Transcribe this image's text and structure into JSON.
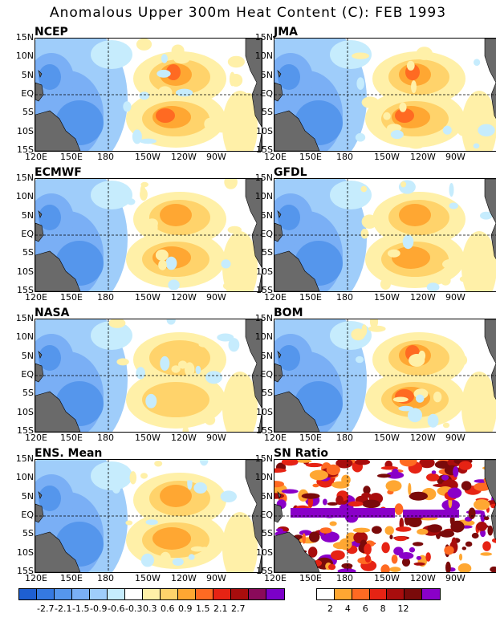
{
  "title": "Anomalous Upper 300m Heat Content (C): FEB 1993",
  "lat_labels": [
    "15N",
    "10N",
    "5N",
    "EQ",
    "5S",
    "10S",
    "15S"
  ],
  "lon_labels": [
    "120E",
    "150E",
    "180",
    "150W",
    "120W",
    "90W"
  ],
  "panels": [
    {
      "id": "ncep",
      "label": "NCEP"
    },
    {
      "id": "jma",
      "label": "JMA"
    },
    {
      "id": "ecmwf",
      "label": "ECMWF"
    },
    {
      "id": "gfdl",
      "label": "GFDL"
    },
    {
      "id": "nasa",
      "label": "NASA"
    },
    {
      "id": "bom",
      "label": "BOM"
    },
    {
      "id": "ens",
      "label": "ENS. Mean"
    },
    {
      "id": "sn",
      "label": "SN Ratio"
    }
  ],
  "anomaly_colorbar": {
    "colors": [
      "#1e5fd2",
      "#3579e0",
      "#5596ec",
      "#7aaff5",
      "#9fcdfa",
      "#c6ecfd",
      "#ffffff",
      "#fff0a8",
      "#ffd36b",
      "#ffa732",
      "#ff6a22",
      "#e62314",
      "#a80d0d",
      "#8a0a5a",
      "#7b00c8"
    ],
    "labels": [
      "-2.7",
      "-2.1",
      "-1.5",
      "-0.9",
      "-0.6",
      "-0.3",
      "0.3",
      "0.6",
      "0.9",
      "1.5",
      "2.1",
      "2.7"
    ]
  },
  "sn_colorbar": {
    "colors": [
      "#ffffff",
      "#ffa732",
      "#ff6a22",
      "#e62314",
      "#a80d0d",
      "#7a0a0a",
      "#8a00c8"
    ],
    "labels": [
      "2",
      "4",
      "6",
      "8",
      "12"
    ]
  },
  "colors": {
    "land": "#6a6a6a",
    "border": "#000000"
  }
}
